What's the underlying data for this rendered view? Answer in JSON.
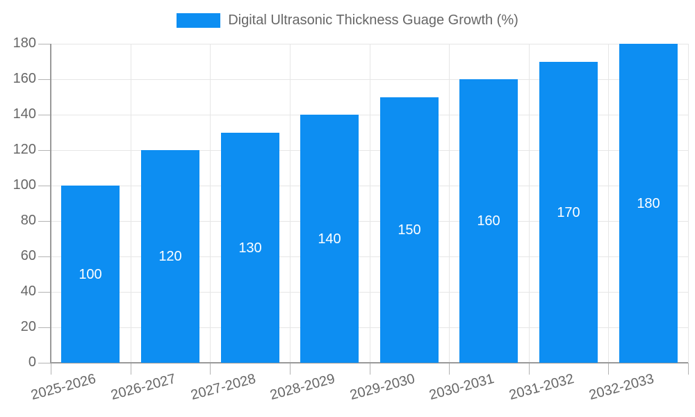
{
  "legend": {
    "label": "Digital Ultrasonic Thickness Guage Growth (%)"
  },
  "chart_data": {
    "type": "bar",
    "title": "Digital Ultrasonic Thickness Guage Growth (%)",
    "categories": [
      "2025-2026",
      "2026-2027",
      "2027-2028",
      "2028-2029",
      "2029-2030",
      "2030-2031",
      "2031-2032",
      "2032-2033"
    ],
    "values": [
      100,
      120,
      130,
      140,
      150,
      160,
      170,
      180
    ],
    "data_labels": [
      "100",
      "120",
      "130",
      "140",
      "150",
      "160",
      "170",
      "180"
    ],
    "xlabel": "",
    "ylabel": "",
    "ylim": [
      0,
      180
    ],
    "yticks": [
      0,
      20,
      40,
      60,
      80,
      100,
      120,
      140,
      160,
      180
    ],
    "grid": true,
    "legend_position": "top-center",
    "x_label_rotation_deg": -15,
    "data_label_placement": "inside-center"
  },
  "colors": {
    "bar": "#0d8ef2",
    "axis_line": "#999999",
    "grid_line": "#e6e6e6",
    "tick": "#b3b3b3",
    "axis_text": "#666666",
    "data_label_text": "#ffffff",
    "background": "#ffffff"
  }
}
